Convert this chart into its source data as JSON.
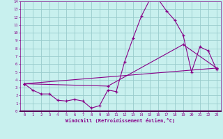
{
  "xlabel": "Windchill (Refroidissement éolien,°C)",
  "bg_color": "#c8f0ee",
  "line_color": "#880088",
  "grid_color": "#99cccc",
  "xlim": [
    -0.5,
    23.5
  ],
  "ylim": [
    0,
    14
  ],
  "xticks": [
    0,
    1,
    2,
    3,
    4,
    5,
    6,
    7,
    8,
    9,
    10,
    11,
    12,
    13,
    14,
    15,
    16,
    17,
    18,
    19,
    20,
    21,
    22,
    23
  ],
  "yticks": [
    0,
    1,
    2,
    3,
    4,
    5,
    6,
    7,
    8,
    9,
    10,
    11,
    12,
    13,
    14
  ],
  "line1_x": [
    0,
    1,
    2,
    3,
    4,
    5,
    6,
    7,
    8,
    9,
    10,
    11,
    12,
    13,
    14,
    15,
    16,
    17,
    18,
    19,
    20,
    21,
    22,
    23
  ],
  "line1_y": [
    3.5,
    2.7,
    2.2,
    2.2,
    1.4,
    1.3,
    1.5,
    1.3,
    0.4,
    0.7,
    2.7,
    2.5,
    6.3,
    9.3,
    12.1,
    14.2,
    14.3,
    12.8,
    11.6,
    9.7,
    5.0,
    8.2,
    7.7,
    5.3
  ],
  "line2_x": [
    0,
    23
  ],
  "line2_y": [
    3.5,
    5.5
  ],
  "line3_x": [
    0,
    10,
    19,
    23
  ],
  "line3_y": [
    3.5,
    3.2,
    8.5,
    5.5
  ]
}
